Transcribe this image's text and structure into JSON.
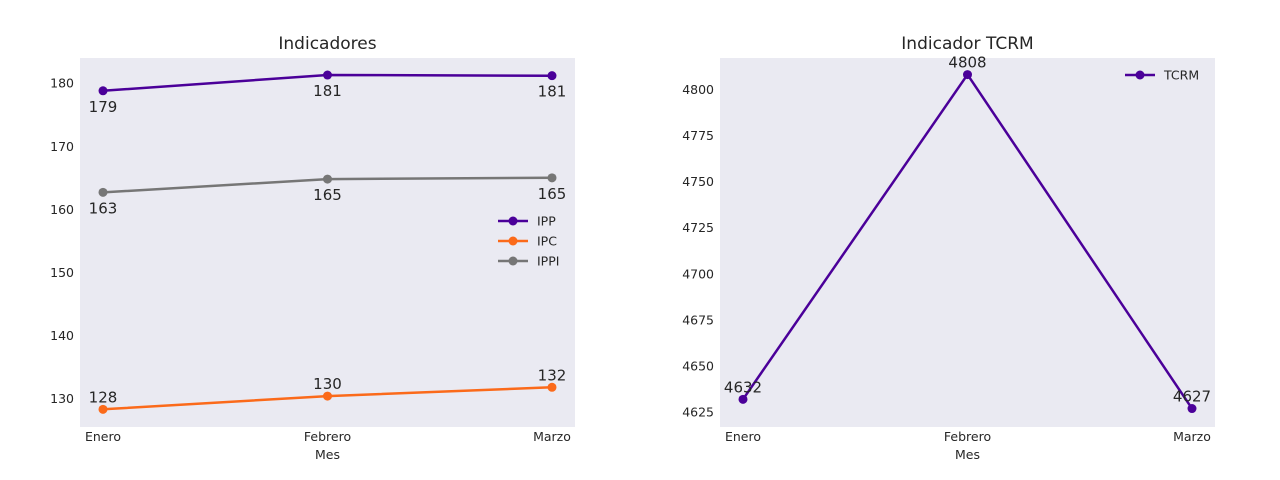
{
  "chart_data": [
    {
      "type": "line",
      "title": "Indicadores",
      "xlabel": "Mes",
      "ylabel": "",
      "categories": [
        "Enero",
        "Febrero",
        "Marzo"
      ],
      "ylim": [
        125.5,
        184
      ],
      "yticks": [
        130,
        140,
        150,
        160,
        170,
        180
      ],
      "grid": false,
      "legend_position": "center-right",
      "series": [
        {
          "name": "IPP",
          "color": "#4b0099",
          "values": [
            178.8,
            181.3,
            181.2
          ],
          "labels": [
            "179",
            "181",
            "181"
          ],
          "label_position": "below"
        },
        {
          "name": "IPC",
          "color": "#fb6a1a",
          "values": [
            128.3,
            130.4,
            131.8
          ],
          "labels": [
            "128",
            "130",
            "132"
          ],
          "label_position": "above"
        },
        {
          "name": "IPPI",
          "color": "#767676",
          "values": [
            162.7,
            164.8,
            165.0
          ],
          "labels": [
            "163",
            "165",
            "165"
          ],
          "label_position": "below"
        }
      ]
    },
    {
      "type": "line",
      "title": "Indicador TCRM",
      "xlabel": "Mes",
      "ylabel": "",
      "categories": [
        "Enero",
        "Febrero",
        "Marzo"
      ],
      "ylim": [
        4617,
        4817
      ],
      "yticks": [
        4625,
        4650,
        4675,
        4700,
        4725,
        4750,
        4775,
        4800
      ],
      "grid": false,
      "legend_position": "top-right",
      "series": [
        {
          "name": "TCRM",
          "color": "#4b0099",
          "values": [
            4632,
            4808,
            4627
          ],
          "labels": [
            "4632",
            "4808",
            "4627"
          ],
          "label_position": "above"
        }
      ]
    }
  ]
}
